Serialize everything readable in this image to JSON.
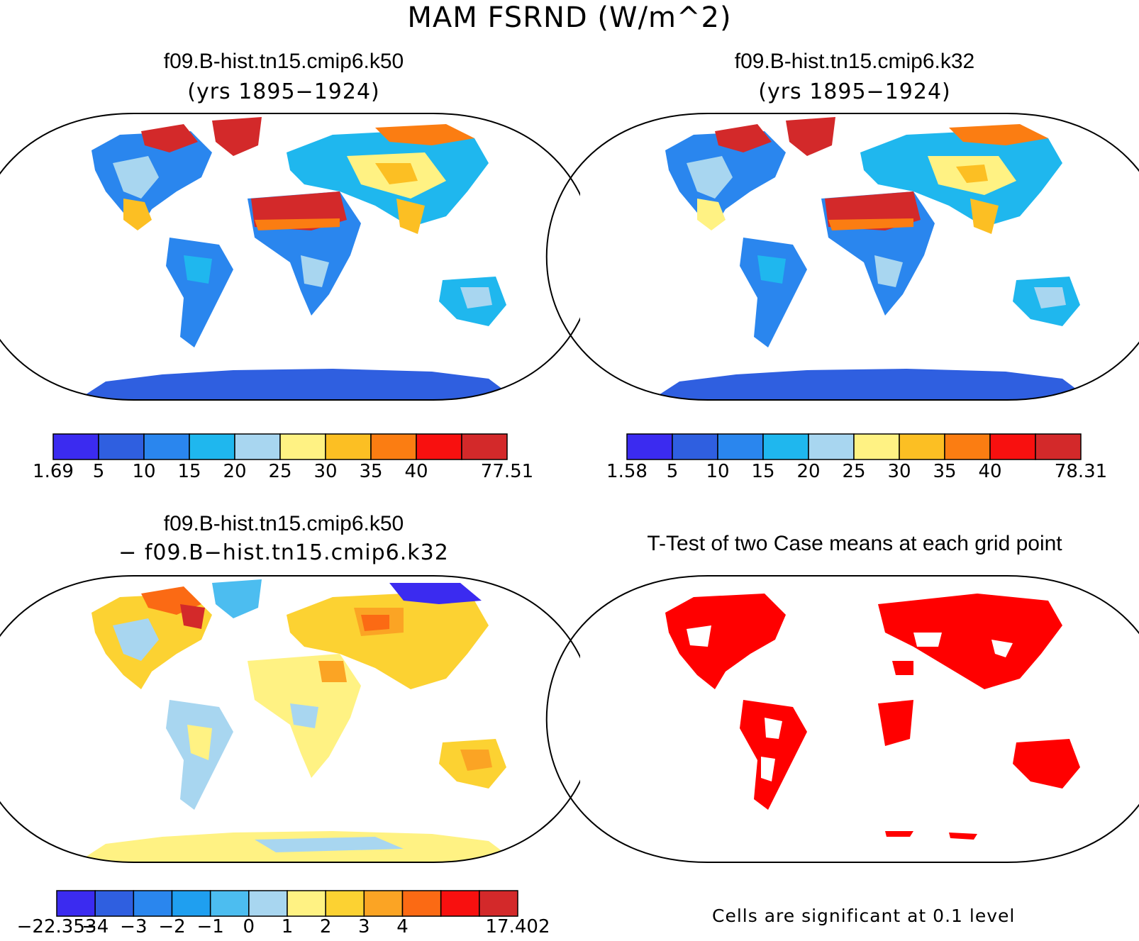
{
  "figure": {
    "title": "MAM FSRND (W/m^2)"
  },
  "panels": {
    "top_left": {
      "title": "f09.B-hist.tn15.cmip6.k50",
      "subtitle": "(yrs 1895−1924)",
      "colorbar": {
        "labels": [
          "1.69",
          "5",
          "10",
          "15",
          "20",
          "25",
          "30",
          "35",
          "40",
          "77.51"
        ],
        "colors": [
          "#3b2bf0",
          "#2f5fe0",
          "#2a86ee",
          "#1fb7ee",
          "#a8d6f0",
          "#fff283",
          "#fcbf23",
          "#fb7d12",
          "#f8100f",
          "#d3292a"
        ]
      }
    },
    "top_right": {
      "title": "f09.B-hist.tn15.cmip6.k32",
      "subtitle": "(yrs 1895−1924)",
      "colorbar": {
        "labels": [
          "1.58",
          "5",
          "10",
          "15",
          "20",
          "25",
          "30",
          "35",
          "40",
          "78.31"
        ],
        "colors": [
          "#3b2bf0",
          "#2f5fe0",
          "#2a86ee",
          "#1fb7ee",
          "#a8d6f0",
          "#fff283",
          "#fcbf23",
          "#fb7d12",
          "#f8100f",
          "#d3292a"
        ]
      }
    },
    "bottom_left": {
      "title": "f09.B-hist.tn15.cmip6.k50",
      "subtitle": "− f09.B−hist.tn15.cmip6.k32",
      "colorbar": {
        "labels": [
          "−22.353",
          "−4",
          "−3",
          "−2",
          "−1",
          "0",
          "1",
          "2",
          "3",
          "4",
          "17.402"
        ],
        "colors": [
          "#3b2bf0",
          "#2f5fe0",
          "#2a86ee",
          "#1f9ff0",
          "#4cbdf0",
          "#a8d6f0",
          "#fff283",
          "#fcd232",
          "#fba424",
          "#fb6a14",
          "#f8100f",
          "#d3292a"
        ]
      }
    },
    "bottom_right": {
      "title": "T-Test of two Case means at each grid point",
      "note": "Cells are significant at 0.1 level",
      "significance_color": "#ff0000"
    }
  }
}
